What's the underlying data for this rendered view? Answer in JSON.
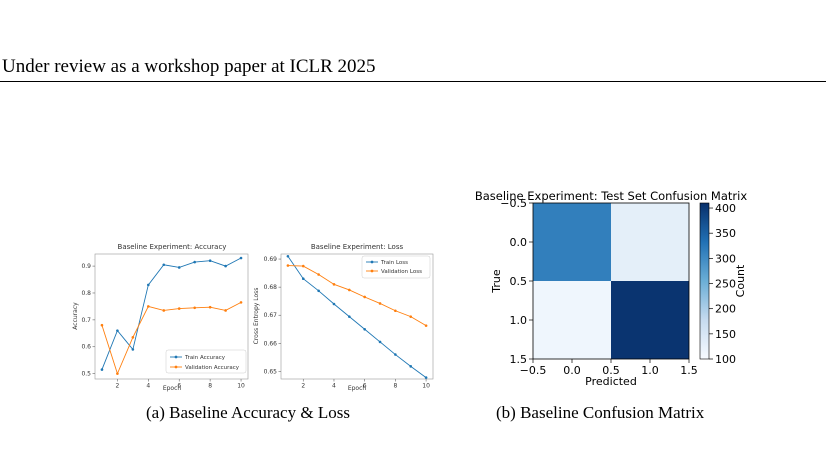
{
  "header": {
    "running_title": "Under review as a workshop paper at ICLR 2025"
  },
  "colors": {
    "train": "#1f77b4",
    "validation": "#ff7f0e"
  },
  "captions": {
    "a": {
      "label": "(a)",
      "text": "Baseline Accuracy & Loss"
    },
    "b": {
      "label": "(b)",
      "text": "Baseline Confusion Matrix"
    }
  },
  "chart_data": [
    {
      "type": "line",
      "title": "Baseline Experiment: Accuracy",
      "xlabel": "Epoch",
      "ylabel": "Accuracy",
      "x": [
        1,
        2,
        3,
        4,
        5,
        6,
        7,
        8,
        9,
        10
      ],
      "xticks": [
        2,
        4,
        6,
        8,
        10
      ],
      "yticks": [
        0.5,
        0.6,
        0.7,
        0.8,
        0.9
      ],
      "xlim": [
        0.55,
        10.45
      ],
      "ylim": [
        0.48,
        0.945
      ],
      "legend_position": "lower-right",
      "series": [
        {
          "name": "Train Accuracy",
          "values": [
            0.515,
            0.66,
            0.59,
            0.83,
            0.905,
            0.895,
            0.915,
            0.92,
            0.9,
            0.93
          ]
        },
        {
          "name": "Validation Accuracy",
          "values": [
            0.68,
            0.5,
            0.635,
            0.75,
            0.735,
            0.742,
            0.745,
            0.747,
            0.735,
            0.765
          ]
        }
      ]
    },
    {
      "type": "line",
      "title": "Baseline Experiment: Loss",
      "xlabel": "Epoch",
      "ylabel": "Cross Entropy Loss",
      "x": [
        1,
        2,
        3,
        4,
        5,
        6,
        7,
        8,
        9,
        10
      ],
      "xticks": [
        2,
        4,
        6,
        8,
        10
      ],
      "yticks": [
        0.65,
        0.66,
        0.67,
        0.68,
        0.69
      ],
      "xlim": [
        0.55,
        10.45
      ],
      "ylim": [
        0.6473,
        0.6918
      ],
      "legend_position": "upper-right",
      "series": [
        {
          "name": "Train Loss",
          "values": [
            0.691,
            0.683,
            0.6787,
            0.674,
            0.6695,
            0.665,
            0.6605,
            0.656,
            0.6518,
            0.6478
          ]
        },
        {
          "name": "Validation Loss",
          "values": [
            0.6877,
            0.6875,
            0.6845,
            0.681,
            0.679,
            0.6765,
            0.6742,
            0.6716,
            0.6695,
            0.6663
          ]
        }
      ]
    },
    {
      "type": "heatmap",
      "title": "Baseline Experiment: Test Set Confusion Matrix",
      "xlabel": "Predicted",
      "ylabel": "True",
      "xticks": [
        "−0.5",
        "0.0",
        "0.5",
        "1.0",
        "1.5"
      ],
      "yticks": [
        "−0.5",
        "0.0",
        "0.5",
        "1.0",
        "1.5"
      ],
      "values": [
        [
          315,
          130
        ],
        [
          112,
          405
        ]
      ],
      "colorbar": {
        "label": "Count",
        "min": 100,
        "max": 410,
        "ticks": [
          "100",
          "150",
          "200",
          "250",
          "300",
          "350",
          "400"
        ]
      }
    }
  ]
}
